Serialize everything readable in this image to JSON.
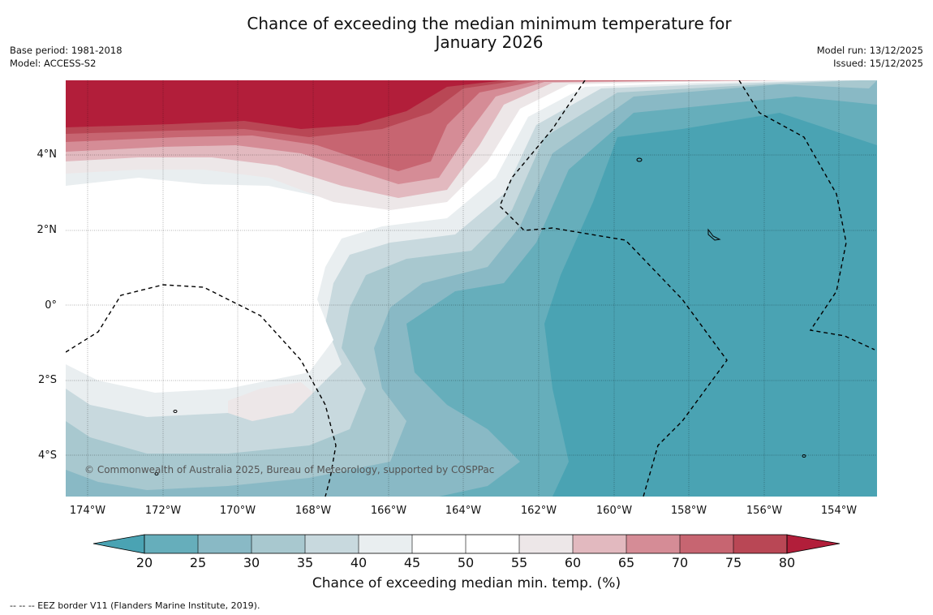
{
  "title": {
    "line1": "Chance of exceeding the median minimum temperature for",
    "line2": "January 2026"
  },
  "meta_left": {
    "base_period": "Base period: 1981-2018",
    "model": "Model: ACCESS-S2"
  },
  "meta_right": {
    "model_run": "Model run: 13/12/2025",
    "issued": "Issued: 15/12/2025"
  },
  "map": {
    "copyright": "© Commonwealth of Australia 2025, Bureau of Meteorology, supported by COSPPac",
    "lat_labels": [
      "4°N",
      "2°N",
      "0°",
      "2°S",
      "4°S"
    ],
    "lon_labels": [
      "174°W",
      "172°W",
      "170°W",
      "168°W",
      "166°W",
      "164°W",
      "162°W",
      "160°W",
      "158°W",
      "156°W",
      "154°W"
    ]
  },
  "colorbar": {
    "title": "Chance of exceeding median min. temp. (%)",
    "tick_labels": [
      "20",
      "25",
      "30",
      "35",
      "40",
      "45",
      "50",
      "55",
      "60",
      "65",
      "70",
      "75",
      "80"
    ],
    "colors": {
      "under": "#4aa3b3",
      "20-25": "#66aebb",
      "25-30": "#89b9c5",
      "30-35": "#a8c8cf",
      "35-40": "#c8d9de",
      "40-45": "#e9eef0",
      "45-50": "#ffffff",
      "50-55": "#ffffff",
      "55-60": "#ede7e8",
      "60-65": "#e2b9bf",
      "65-70": "#d58c96",
      "70-75": "#c76571",
      "75-80": "#b94755",
      "over": "#b21e3a"
    }
  },
  "footer": {
    "legend": "--  --  -- EEZ border V11 (Flanders Marine Institute, 2019)."
  }
}
